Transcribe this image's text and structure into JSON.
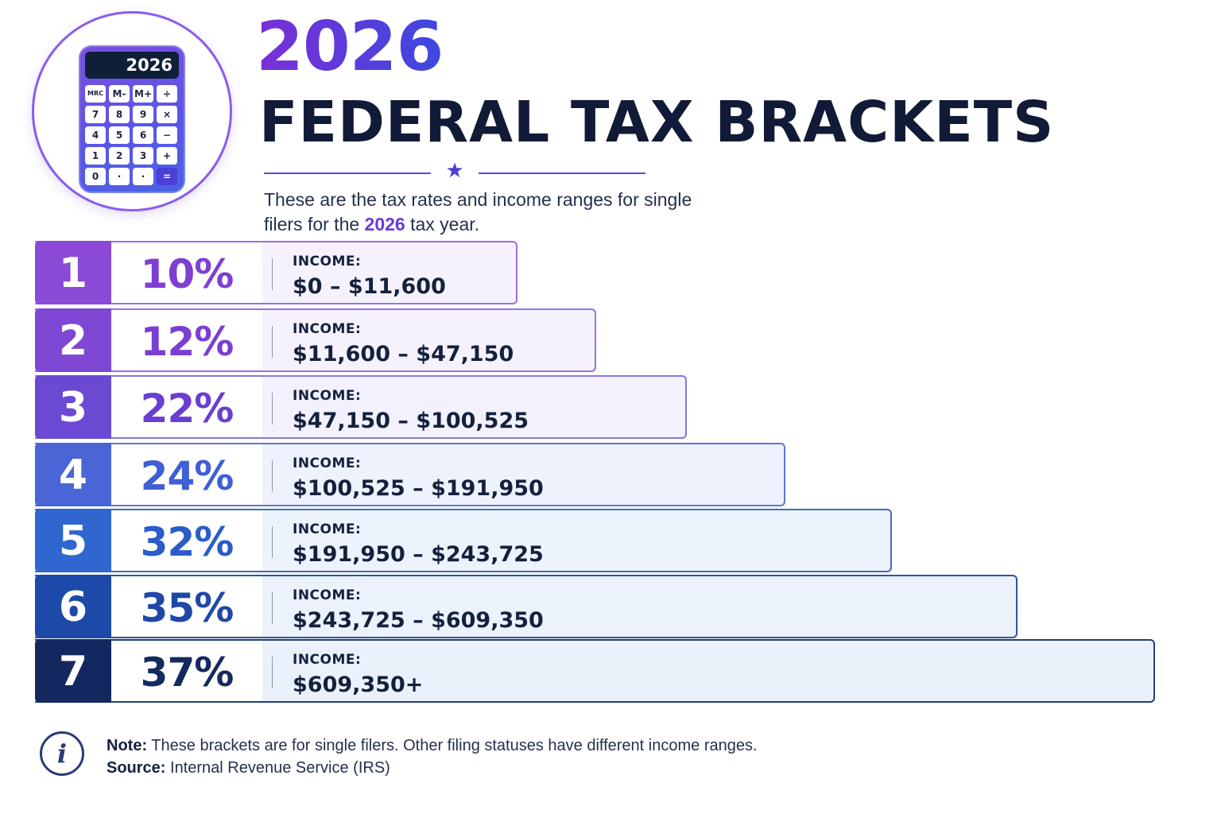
{
  "calculator": {
    "display": "2026",
    "keys": [
      "MRC",
      "M-",
      "M+",
      "÷",
      "7",
      "8",
      "9",
      "×",
      "4",
      "5",
      "6",
      "−",
      "1",
      "2",
      "3",
      "+",
      "0",
      "·",
      "·",
      "="
    ]
  },
  "header": {
    "year": "2026",
    "title": "FEDERAL TAX BRACKETS",
    "intro_prefix": "These are the tax rates and income ranges for single filers for the ",
    "intro_highlight": "2026",
    "intro_suffix": " tax year."
  },
  "brackets": [
    {
      "number": "1",
      "rate": "10%",
      "income_label": "INCOME:",
      "income_range": "$0 – $11,600",
      "rate_color": "#7e3fd3",
      "num_color": "#8a4ad6",
      "row_fill": "#f6f2fd",
      "border_color": "#9b6fe0"
    },
    {
      "number": "2",
      "rate": "12%",
      "income_label": "INCOME:",
      "income_range": "$11,600 – $47,150",
      "rate_color": "#7a3fd2",
      "num_color": "#7e47d4",
      "row_fill": "#f5f1fd",
      "border_color": "#9a70df"
    },
    {
      "number": "3",
      "rate": "22%",
      "income_label": "INCOME:",
      "income_range": "$47,150 – $100,525",
      "rate_color": "#6a3fcf",
      "num_color": "#6b49d2",
      "row_fill": "#f3f1fd",
      "border_color": "#8c75da"
    },
    {
      "number": "4",
      "rate": "24%",
      "income_label": "INCOME:",
      "income_range": "$100,525 – $191,950",
      "rate_color": "#3f5fd4",
      "num_color": "#4a66d6",
      "row_fill": "#eef2fd",
      "border_color": "#5c78cf"
    },
    {
      "number": "5",
      "rate": "32%",
      "income_label": "INCOME:",
      "income_range": "$191,950 – $243,725",
      "rate_color": "#2a5dc9",
      "num_color": "#2f66cf",
      "row_fill": "#edf3fd",
      "border_color": "#3e6bbf"
    },
    {
      "number": "6",
      "rate": "35%",
      "income_label": "INCOME:",
      "income_range": "$243,725 – $609,350",
      "rate_color": "#1f48a6",
      "num_color": "#1d4aa8",
      "row_fill": "#ecf2fc",
      "border_color": "#2e559f"
    },
    {
      "number": "7",
      "rate": "37%",
      "income_label": "INCOME:",
      "income_range": "$609,350+",
      "rate_color": "#142a5e",
      "num_color": "#13285e",
      "row_fill": "#eaf1fb",
      "border_color": "#203f7c"
    }
  ],
  "footer": {
    "note_label": "Note:",
    "note_text": " These brackets are for single filers. Other filing statuses have different income ranges.",
    "source_label": "Source:",
    "source_text": " Internal Revenue Service (IRS)",
    "info_icon": "info-icon"
  }
}
